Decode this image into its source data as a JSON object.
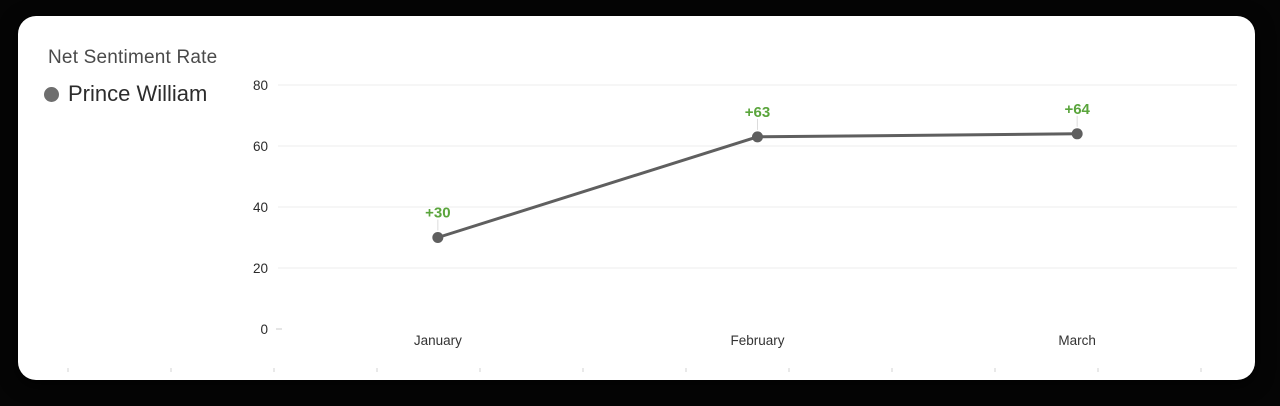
{
  "chart_data": {
    "type": "line",
    "title": "Net Sentiment Rate",
    "legend": {
      "label": "Prince William",
      "marker_color": "#6e6e6e",
      "position": "top-left"
    },
    "categories": [
      "January",
      "February",
      "March"
    ],
    "series": [
      {
        "name": "Prince William",
        "values": [
          30,
          63,
          64
        ],
        "point_labels": [
          "+30",
          "+63",
          "+64"
        ]
      }
    ],
    "y_ticks": [
      0,
      20,
      40,
      60,
      80
    ],
    "ylim": [
      0,
      80
    ],
    "grid": true,
    "colors": {
      "line": "#5f5f5f",
      "point": "#5f5f5f",
      "value_label": "#5aa53c",
      "gridline": "#f3f3f3",
      "callout": "#dcdcdc",
      "axis_text": "#2b2b2b",
      "x_axis_text": "#333333",
      "title_text": "#4a4a4a",
      "legend_text": "#2c2c2c",
      "legend_marker": "#6e6e6e",
      "bottom_tick": "#e9e9e9",
      "card_background": "#ffffff"
    }
  }
}
